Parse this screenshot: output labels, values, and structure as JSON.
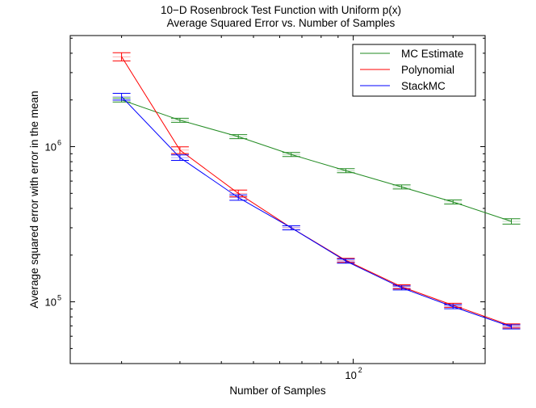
{
  "colors": {
    "mc": "#228B22",
    "poly": "#ff0000",
    "stack": "#0000ff",
    "poly_err": "#ff4d4d",
    "stack_err": "#5a5aff"
  },
  "chart_data": {
    "type": "line",
    "title": "10−D Rosenbrock Test Function with Uniform p(x)",
    "subtitle": "Average Squared Error vs. Number of Samples",
    "xlabel": "Number of Samples",
    "ylabel": "Average squared error with error in the mean",
    "xscale": "log",
    "yscale": "log",
    "xlim": [
      14,
      250
    ],
    "ylim": [
      40000,
      5200000
    ],
    "xticks": [
      {
        "value": 100,
        "base": "10",
        "exp": "2"
      }
    ],
    "yticks": [
      {
        "value": 100000,
        "base": "10",
        "exp": "5"
      },
      {
        "value": 1000000,
        "base": "10",
        "exp": "6"
      }
    ],
    "grid": false,
    "legend_position": "top-right",
    "series": [
      {
        "name": "MC Estimate",
        "color_key": "mc",
        "x": [
          20,
          30,
          45,
          65,
          95,
          140,
          200,
          300
        ],
        "y": [
          2000000,
          1480000,
          1160000,
          890000,
          700000,
          550000,
          440000,
          330000
        ],
        "err": [
          0.03,
          0.03,
          0.03,
          0.03,
          0.03,
          0.03,
          0.03,
          0.04
        ]
      },
      {
        "name": "Polynomial",
        "color_key": "poly",
        "x": [
          20,
          30,
          45,
          65,
          95,
          140,
          200,
          300
        ],
        "y": [
          3800000,
          950000,
          500000,
          300000,
          185000,
          125000,
          95000,
          70000
        ],
        "err": [
          0.06,
          0.05,
          0.05,
          0.03,
          0.03,
          0.03,
          0.03,
          0.03
        ]
      },
      {
        "name": "StackMC",
        "color_key": "stack",
        "x": [
          20,
          30,
          45,
          65,
          95,
          140,
          200,
          300
        ],
        "y": [
          2100000,
          850000,
          470000,
          300000,
          183000,
          123000,
          93000,
          69000
        ],
        "err": [
          0.05,
          0.04,
          0.04,
          0.03,
          0.03,
          0.03,
          0.03,
          0.03
        ]
      }
    ]
  }
}
